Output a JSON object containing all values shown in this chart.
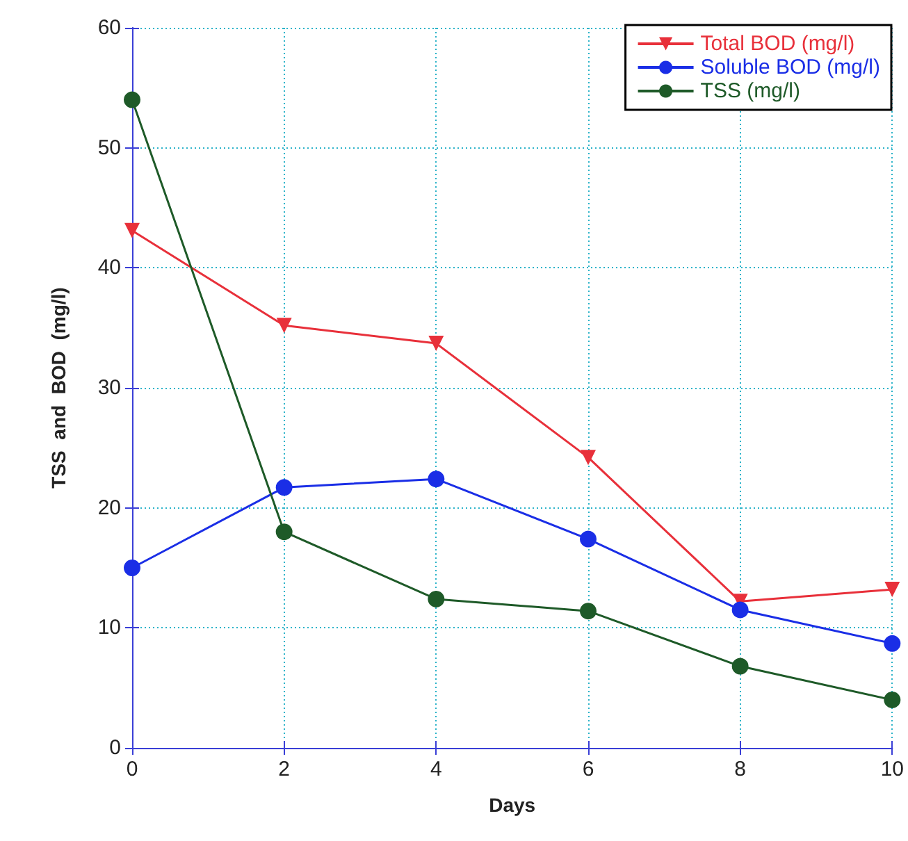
{
  "chart_data": {
    "type": "line",
    "xlabel": "Days",
    "ylabel": "TSS  and  BOD  (mg/l)",
    "x": [
      0,
      2,
      4,
      6,
      8,
      10
    ],
    "series": [
      {
        "name": "Total BOD (mg/l)",
        "color": "#e8303a",
        "marker": "triangle",
        "values": [
          43.1,
          35.2,
          33.7,
          24.2,
          12.2,
          13.2
        ]
      },
      {
        "name": "Soluble BOD (mg/l)",
        "color": "#1a2ee6",
        "marker": "circle",
        "values": [
          15.0,
          21.7,
          22.4,
          17.4,
          11.5,
          8.7
        ]
      },
      {
        "name": "TSS (mg/l)",
        "color": "#1e5a28",
        "marker": "circle",
        "values": [
          54.0,
          18.0,
          12.4,
          11.4,
          6.8,
          4.0
        ]
      }
    ],
    "xlim": [
      0,
      10
    ],
    "xticks": [
      0,
      2,
      4,
      6,
      8,
      10
    ],
    "ylim": [
      0,
      60
    ],
    "yticks": [
      0,
      10,
      20,
      30,
      40,
      50,
      60
    ],
    "grid": true,
    "legend": "top right",
    "line_style": "solid"
  }
}
